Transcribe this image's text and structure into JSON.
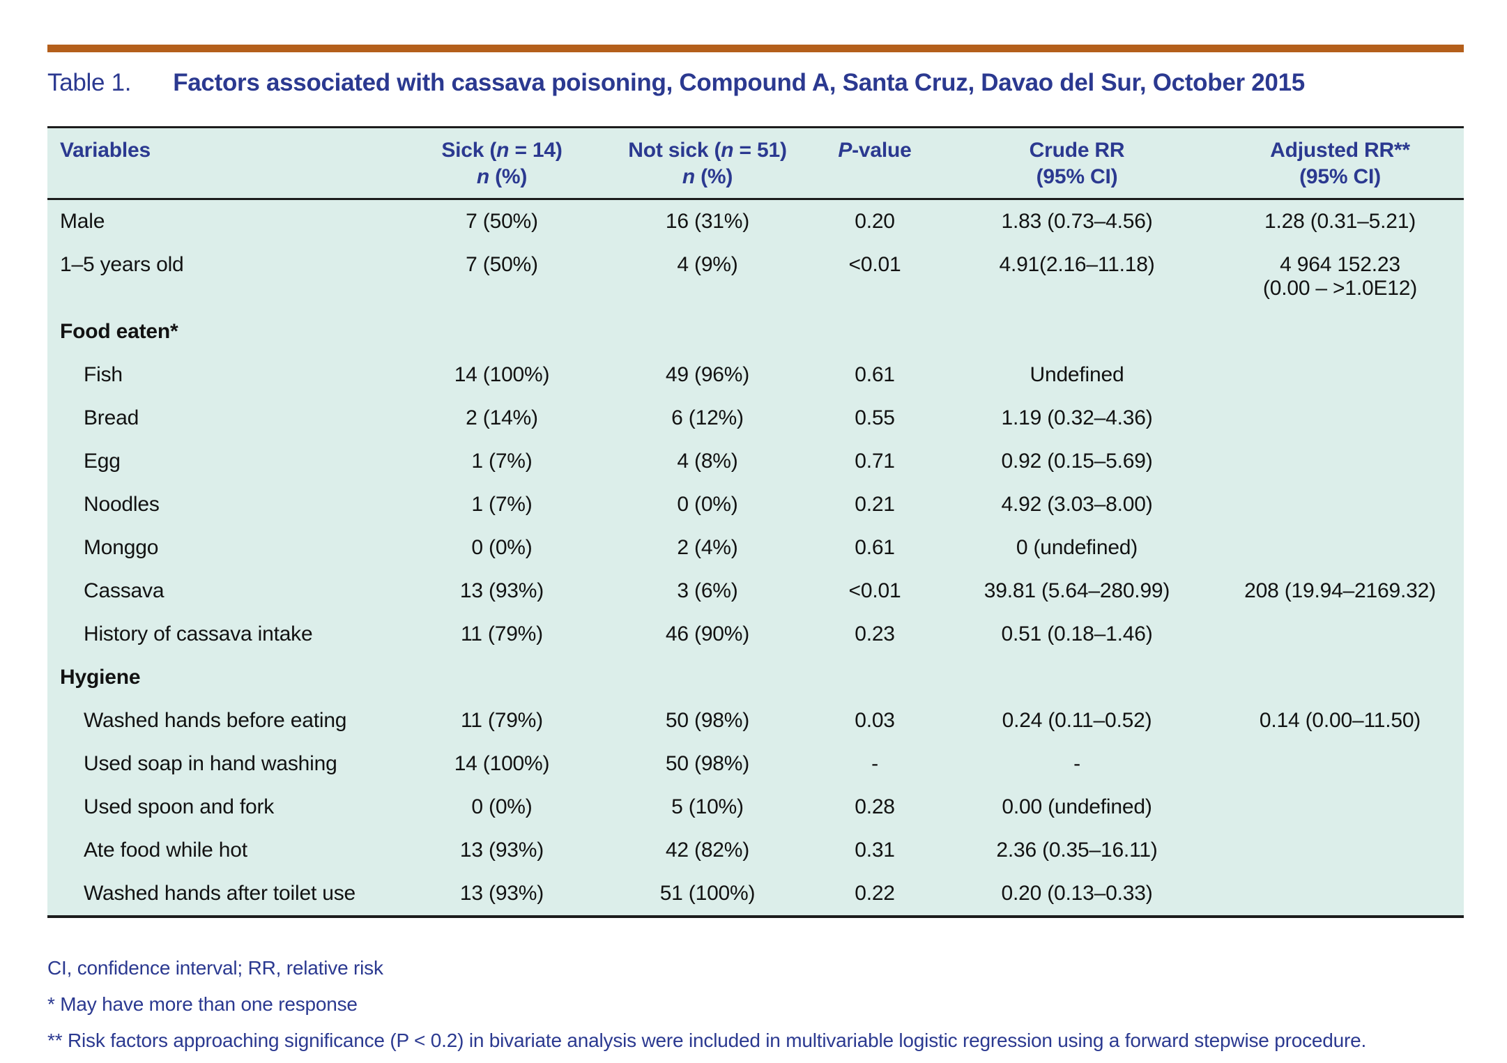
{
  "colors": {
    "accent_orange": "#b45f1b",
    "heading_blue": "#2b3990",
    "table_background": "#dceeea",
    "body_text": "#121212",
    "border_dark": "#1c1c1c"
  },
  "title": {
    "prefix": "Table 1.",
    "text": "Factors associated with cassava poisoning, Compound A, Santa Cruz, Davao del Sur, October 2015"
  },
  "table": {
    "header": {
      "variables": "Variables",
      "sick": {
        "l1a": "Sick (",
        "n1": "n",
        "l1b": " = 14)",
        "n2": "n",
        "l2b": " (%)"
      },
      "not_sick": {
        "l1a": "Not sick (",
        "n1": "n",
        "l1b": " = 51)",
        "n2": "n",
        "l2b": " (%)"
      },
      "p_value": {
        "p": "P",
        "rest": "-value"
      },
      "crude_rr": {
        "l1": "Crude RR",
        "l2": "(95% CI)"
      },
      "adjusted_rr": {
        "l1": "Adjusted RR**",
        "l2": "(95% CI)"
      }
    },
    "rows": [
      {
        "kind": "top",
        "label": "Male",
        "sick": "7 (50%)",
        "not_sick": "16 (31%)",
        "p": "0.20",
        "crude": "1.83 (0.73–4.56)",
        "adjusted": "1.28 (0.31–5.21)"
      },
      {
        "kind": "top",
        "label": "1–5 years old",
        "sick": "7 (50%)",
        "not_sick": "4 (9%)",
        "p": "<0.01",
        "crude": "4.91(2.16–11.18)",
        "adjusted": "4 964 152.23\n(0.00 – >1.0E12)"
      },
      {
        "kind": "section",
        "label": "Food eaten*",
        "sick": "",
        "not_sick": "",
        "p": "",
        "crude": "",
        "adjusted": ""
      },
      {
        "kind": "sub",
        "label": "Fish",
        "sick": "14 (100%)",
        "not_sick": "49 (96%)",
        "p": "0.61",
        "crude": "Undefined",
        "adjusted": ""
      },
      {
        "kind": "sub",
        "label": "Bread",
        "sick": "2 (14%)",
        "not_sick": "6 (12%)",
        "p": "0.55",
        "crude": "1.19 (0.32–4.36)",
        "adjusted": ""
      },
      {
        "kind": "sub",
        "label": "Egg",
        "sick": "1 (7%)",
        "not_sick": "4 (8%)",
        "p": "0.71",
        "crude": "0.92 (0.15–5.69)",
        "adjusted": ""
      },
      {
        "kind": "sub",
        "label": "Noodles",
        "sick": "1 (7%)",
        "not_sick": "0 (0%)",
        "p": "0.21",
        "crude": "4.92 (3.03–8.00)",
        "adjusted": ""
      },
      {
        "kind": "sub",
        "label": "Monggo",
        "sick": "0 (0%)",
        "not_sick": "2 (4%)",
        "p": "0.61",
        "crude": "0 (undefined)",
        "adjusted": ""
      },
      {
        "kind": "sub",
        "label": "Cassava",
        "sick": "13 (93%)",
        "not_sick": "3 (6%)",
        "p": "<0.01",
        "crude": "39.81 (5.64–280.99)",
        "adjusted": "208 (19.94–2169.32)"
      },
      {
        "kind": "sub",
        "label": "History of cassava intake",
        "sick": "11 (79%)",
        "not_sick": "46 (90%)",
        "p": "0.23",
        "crude": "0.51 (0.18–1.46)",
        "adjusted": ""
      },
      {
        "kind": "section",
        "label": "Hygiene",
        "sick": "",
        "not_sick": "",
        "p": "",
        "crude": "",
        "adjusted": ""
      },
      {
        "kind": "sub",
        "label": "Washed hands before eating",
        "sick": "11 (79%)",
        "not_sick": "50 (98%)",
        "p": "0.03",
        "crude": "0.24 (0.11–0.52)",
        "adjusted": "0.14 (0.00–11.50)"
      },
      {
        "kind": "sub",
        "label": "Used soap in hand washing",
        "sick": "14 (100%)",
        "not_sick": "50 (98%)",
        "p": "-",
        "crude": "-",
        "adjusted": ""
      },
      {
        "kind": "sub",
        "label": "Used spoon and fork",
        "sick": "0 (0%)",
        "not_sick": "5 (10%)",
        "p": "0.28",
        "crude": "0.00 (undefined)",
        "adjusted": ""
      },
      {
        "kind": "sub",
        "label": "Ate food while hot",
        "sick": "13 (93%)",
        "not_sick": "42 (82%)",
        "p": "0.31",
        "crude": "2.36 (0.35–16.11)",
        "adjusted": ""
      },
      {
        "kind": "sub",
        "label": "Washed hands after toilet use",
        "sick": "13 (93%)",
        "not_sick": "51 (100%)",
        "p": "0.22",
        "crude": "0.20 (0.13–0.33)",
        "adjusted": ""
      }
    ]
  },
  "footnotes": [
    "CI, confidence interval; RR, relative risk",
    "* May have more than one response",
    "** Risk factors approaching significance (P < 0.2) in bivariate analysis were included in multivariable logistic regression using a forward stepwise procedure."
  ]
}
